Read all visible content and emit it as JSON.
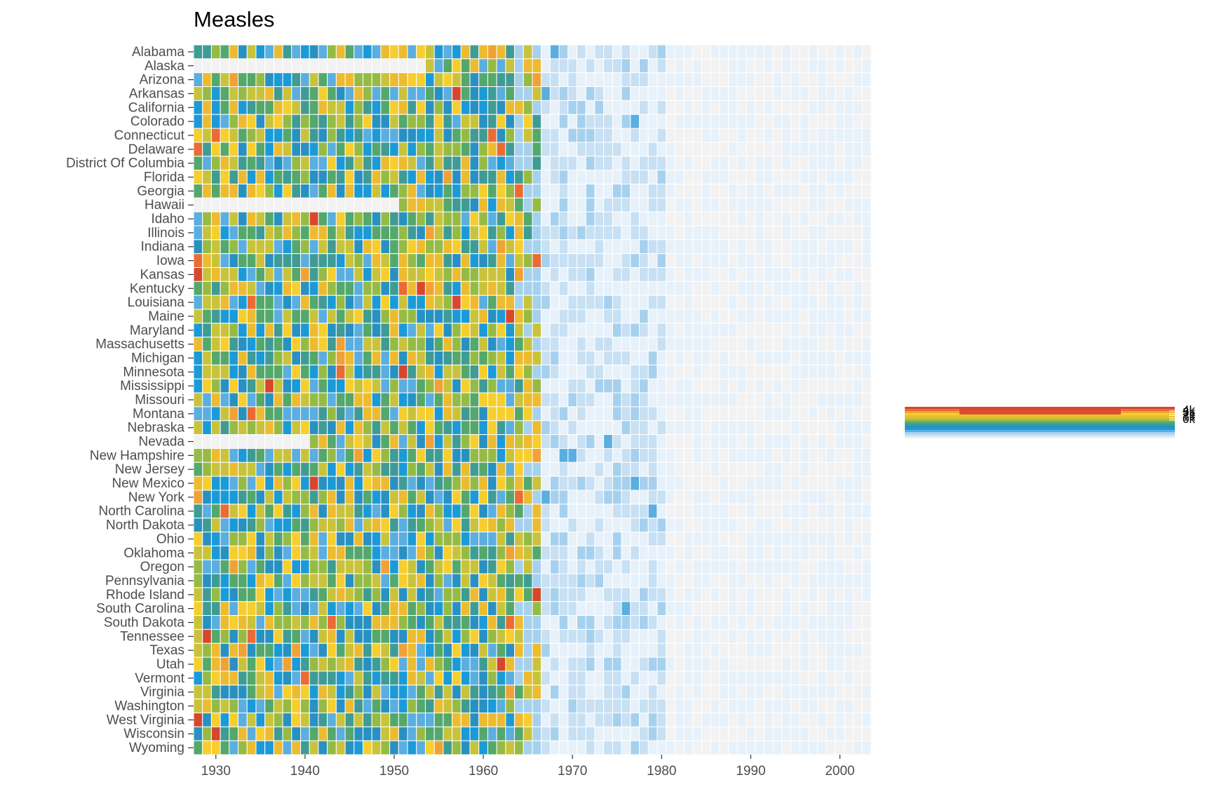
{
  "chart_data": {
    "type": "heatmap",
    "title": "Measles",
    "xlabel": "",
    "ylabel": "",
    "x_range": [
      1928,
      2003
    ],
    "x_ticks": [
      1930,
      1940,
      1950,
      1960,
      1970,
      1980,
      1990,
      2000
    ],
    "x_tick_labels": [
      "1930",
      "1940",
      "1950",
      "1960",
      "1970",
      "1980",
      "1990",
      "2000"
    ],
    "states": [
      "Alabama",
      "Alaska",
      "Arizona",
      "Arkansas",
      "California",
      "Colorado",
      "Connecticut",
      "Delaware",
      "District Of Columbia",
      "Florida",
      "Georgia",
      "Hawaii",
      "Idaho",
      "Illinois",
      "Indiana",
      "Iowa",
      "Kansas",
      "Kentucky",
      "Louisiana",
      "Maine",
      "Maryland",
      "Massachusetts",
      "Michigan",
      "Minnesota",
      "Mississippi",
      "Missouri",
      "Montana",
      "Nebraska",
      "Nevada",
      "New Hampshire",
      "New Jersey",
      "New Mexico",
      "New York",
      "North Carolina",
      "North Dakota",
      "Ohio",
      "Oklahoma",
      "Oregon",
      "Pennsylvania",
      "Rhode Island",
      "South Carolina",
      "South Dakota",
      "Tennessee",
      "Texas",
      "Utah",
      "Vermont",
      "Virginia",
      "Washington",
      "West Virginia",
      "Wisconsin",
      "Wyoming"
    ],
    "grid": false,
    "background": "#ffffff",
    "tile_border_color": "#ffffff",
    "missing_color": "#f2f2f2",
    "color_scale": [
      "#e7f1fa",
      "#c7e0f3",
      "#a6d1ee",
      "#5aaee0",
      "#1b9ad8",
      "#2891c2",
      "#3f9c94",
      "#54a86b",
      "#96bb45",
      "#c9c33c",
      "#ecbb30",
      "#f6ce2e",
      "#f0a234",
      "#ea6b34",
      "#d7472d"
    ],
    "legend": {
      "placement": "right",
      "tick_labels": [
        "4k",
        "3k",
        "2k",
        "1k",
        "0k"
      ]
    },
    "era_profile": {
      "pre_vaccine_years": [
        1928,
        1966
      ],
      "post_vaccine_years": [
        1967,
        2003
      ],
      "note_start_years": {
        "Alaska": 1954,
        "Hawaii": 1951,
        "Nevada": 1941
      }
    }
  }
}
